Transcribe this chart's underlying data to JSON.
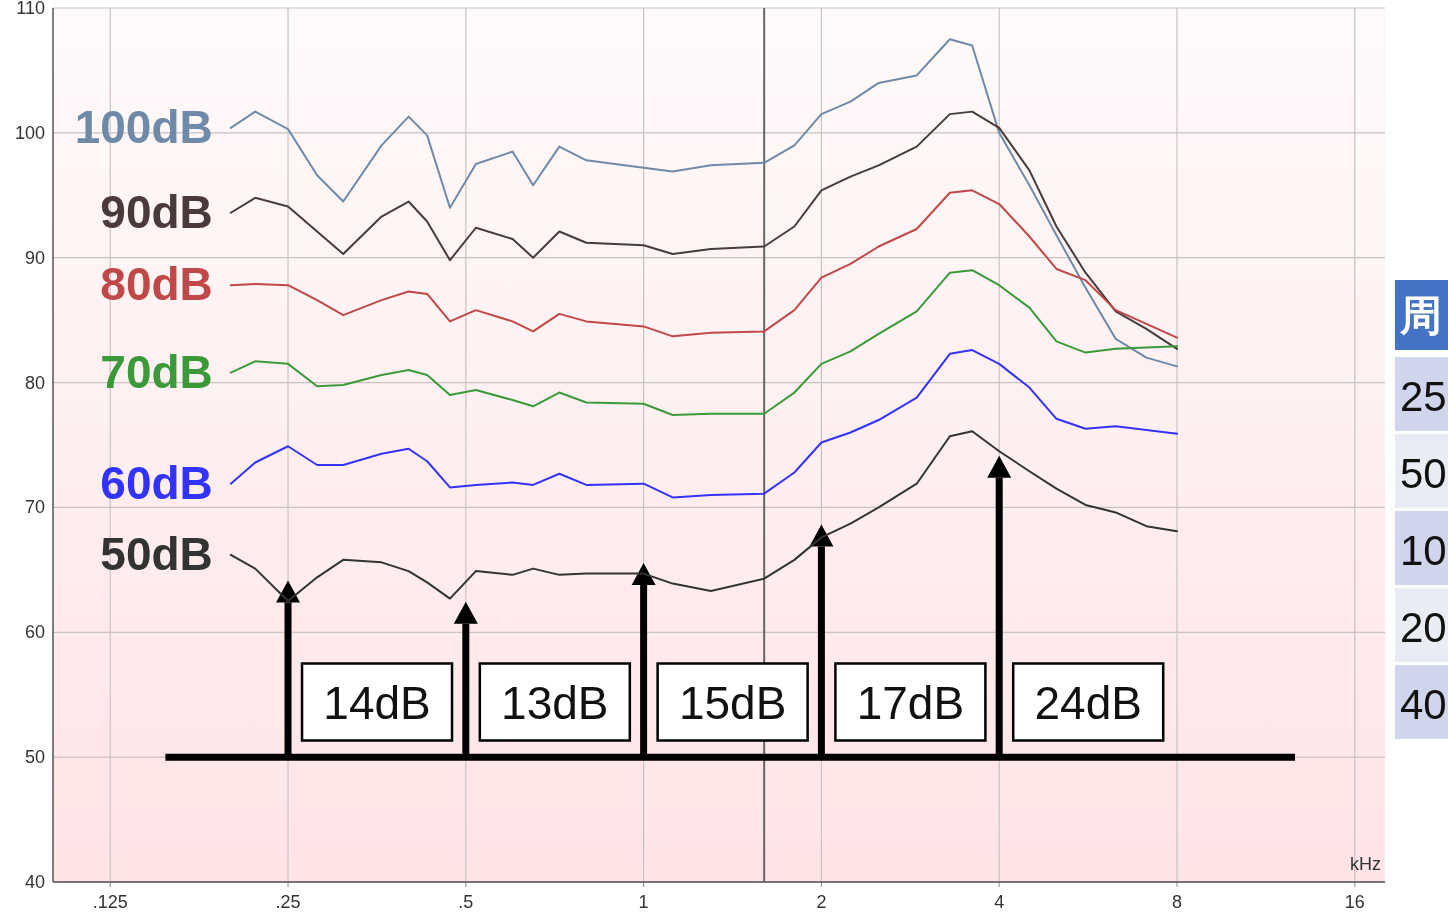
{
  "chart_data": {
    "type": "line",
    "xlabel": "kHz",
    "log": "x",
    "grid": true,
    "legend": false,
    "line_style": "solid",
    "marker": "none",
    "xlim": [
      0.1,
      18
    ],
    "xticks": [
      {
        "value": 0.125,
        "label": ".125"
      },
      {
        "value": 0.25,
        "label": ".25"
      },
      {
        "value": 0.5,
        "label": ".5"
      },
      1,
      2,
      4,
      8,
      16
    ],
    "ylim": [
      40,
      110
    ],
    "yticks": [
      40,
      50,
      60,
      70,
      80,
      90,
      100,
      110
    ],
    "x": [
      0.2,
      0.22,
      0.25,
      0.28,
      0.31,
      0.36,
      0.4,
      0.43,
      0.47,
      0.52,
      0.6,
      0.65,
      0.72,
      0.8,
      1,
      1.12,
      1.3,
      1.6,
      1.8,
      2,
      2.24,
      2.5,
      2.9,
      3.3,
      3.6,
      4,
      4.5,
      5,
      5.6,
      6.3,
      7.1,
      8
    ],
    "series": [
      {
        "name": "100dB",
        "color": "#6f8aa8",
        "values": [
          100.4,
          101.7,
          100.3,
          96.6,
          94.5,
          99,
          101.3,
          99.8,
          94,
          97.5,
          98.5,
          95.8,
          98.9,
          97.8,
          97.2,
          96.9,
          97.4,
          97.6,
          99,
          101.5,
          102.5,
          104,
          104.6,
          107.5,
          107,
          100,
          95.8,
          91.8,
          87.6,
          83.5,
          82,
          81.3
        ]
      },
      {
        "name": "90dB",
        "color": "#4a3a3c",
        "values": [
          93.6,
          94.8,
          94.1,
          92.1,
          90.3,
          93.3,
          94.5,
          92.9,
          89.8,
          92.4,
          91.5,
          90,
          92.1,
          91.2,
          91,
          90.3,
          90.7,
          90.9,
          92.5,
          95.4,
          96.5,
          97.4,
          98.9,
          101.5,
          101.7,
          100.4,
          97,
          92.5,
          88.8,
          85.7,
          84.3,
          82.7
        ]
      },
      {
        "name": "80dB",
        "color": "#c04848",
        "values": [
          87.8,
          87.9,
          87.8,
          86.6,
          85.4,
          86.6,
          87.3,
          87.1,
          84.9,
          85.8,
          84.9,
          84.1,
          85.5,
          84.9,
          84.5,
          83.7,
          84,
          84.1,
          85.8,
          88.4,
          89.5,
          90.9,
          92.3,
          95.2,
          95.4,
          94.3,
          91.7,
          89.1,
          88.2,
          85.8,
          84.7,
          83.6
        ]
      },
      {
        "name": "70dB",
        "color": "#3a9a3a",
        "values": [
          80.8,
          81.7,
          81.5,
          79.7,
          79.8,
          80.6,
          81,
          80.6,
          79,
          79.4,
          78.6,
          78.1,
          79.2,
          78.4,
          78.3,
          77.4,
          77.5,
          77.5,
          79.2,
          81.5,
          82.5,
          83.9,
          85.7,
          88.8,
          89,
          87.8,
          86,
          83.3,
          82.4,
          82.7,
          82.8,
          82.9
        ]
      },
      {
        "name": "60dB",
        "color": "#3333ff",
        "values": [
          71.9,
          73.6,
          74.9,
          73.4,
          73.4,
          74.3,
          74.7,
          73.7,
          71.6,
          71.8,
          72,
          71.8,
          72.7,
          71.8,
          71.9,
          70.8,
          71,
          71.1,
          72.8,
          75.2,
          76,
          77,
          78.8,
          82.3,
          82.6,
          81.5,
          79.6,
          77.1,
          76.3,
          76.5,
          76.2,
          75.9
        ]
      },
      {
        "name": "50dB",
        "color": "#333333",
        "values": [
          66.2,
          65.1,
          62.5,
          64.4,
          65.8,
          65.6,
          64.9,
          64,
          62.7,
          64.9,
          64.6,
          65.1,
          64.6,
          64.7,
          64.7,
          63.9,
          63.3,
          64.3,
          65.8,
          67.6,
          68.7,
          70,
          71.9,
          75.7,
          76.1,
          74.5,
          72.9,
          71.5,
          70.2,
          69.6,
          68.5,
          68.1
        ]
      },
      {
        "type": "lollipop",
        "marker": "triangle",
        "color": "#000000",
        "x": [
          0.25,
          0.5,
          1,
          2,
          4
        ],
        "values": [
          63.1,
          61.4,
          64.5,
          67.6,
          73.1
        ]
      }
    ],
    "ref_lines": [
      {
        "axis": "x",
        "value": 1.6,
        "color": "#666666"
      },
      {
        "axis": "y",
        "value": 50,
        "color": "#000000"
      }
    ],
    "annotations": [
      "14dB",
      "13dB",
      "15dB",
      "17dB",
      "24dB",
      "周",
      "25",
      "50",
      "10",
      "20",
      "40"
    ]
  }
}
